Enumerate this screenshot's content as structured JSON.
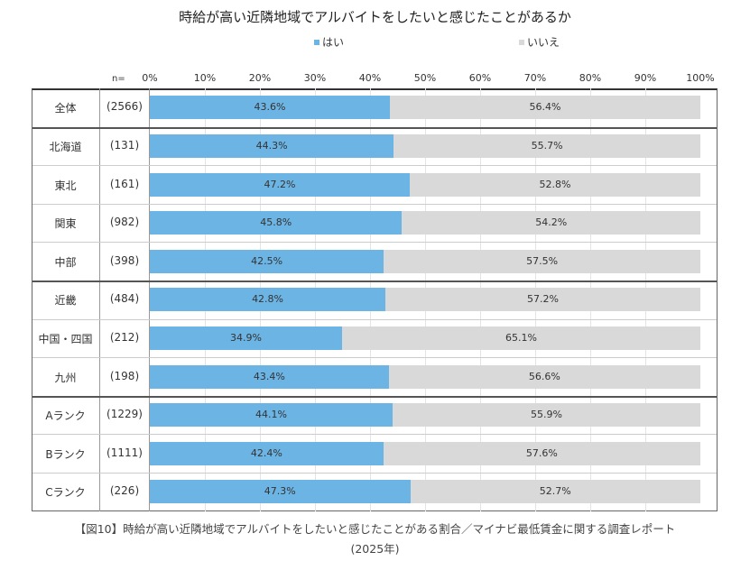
{
  "chart_data": {
    "type": "bar",
    "stacked": true,
    "orientation": "horizontal",
    "title": "時給が高い近隣地域でアルバイトをしたいと感じたことがあるか",
    "n_label": "n=",
    "categories": [
      "全体",
      "北海道",
      "東北",
      "関東",
      "中部",
      "近畿",
      "中国・四国",
      "九州",
      "Aランク",
      "Bランク",
      "Cランク"
    ],
    "n_values": [
      "(2566)",
      "(131)",
      "(161)",
      "(982)",
      "(398)",
      "(484)",
      "(212)",
      "(198)",
      "(1229)",
      "(1111)",
      "(226)"
    ],
    "series": [
      {
        "name": "はい",
        "color": "#6cb4e4",
        "values": [
          43.6,
          44.3,
          47.2,
          45.8,
          42.5,
          42.8,
          34.9,
          43.4,
          44.1,
          42.4,
          47.3
        ]
      },
      {
        "name": "いいえ",
        "color": "#d9d9d9",
        "values": [
          56.4,
          55.7,
          52.8,
          54.2,
          57.5,
          57.2,
          65.1,
          56.6,
          55.9,
          57.6,
          52.7
        ]
      }
    ],
    "xlim": [
      0,
      100
    ],
    "xticks": [
      "0%",
      "10%",
      "20%",
      "30%",
      "40%",
      "50%",
      "60%",
      "70%",
      "80%",
      "90%",
      "100%"
    ],
    "grid": true,
    "legend_position": "top"
  },
  "caption": {
    "line1": "【図10】時給が高い近隣地域でアルバイトをしたいと感じたことがある割合／マイナビ最低賃金に関する調査レポート",
    "line2": "(2025年)"
  }
}
